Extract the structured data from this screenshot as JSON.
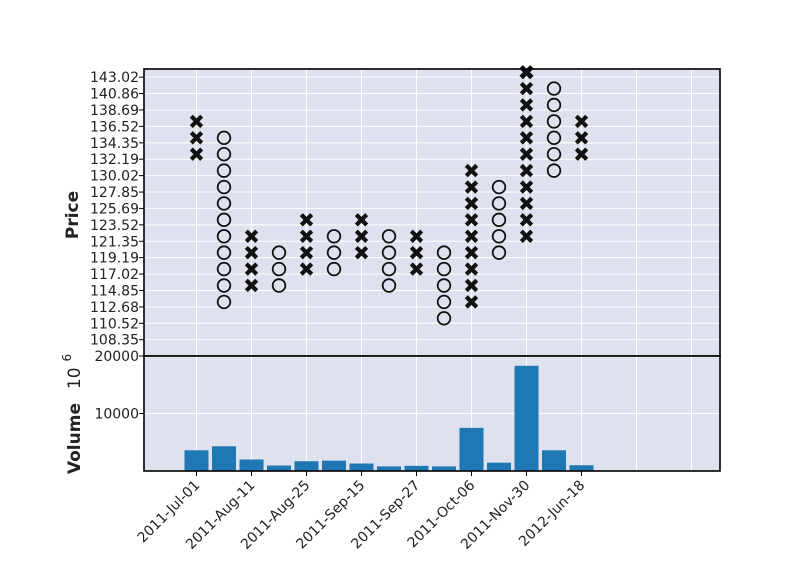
{
  "colors": {
    "panel_background": "#dde2ee",
    "grid": "#ffffff",
    "marker": "#111111",
    "volume_bar": "#1f77b4"
  },
  "chart_data": [
    {
      "type": "point-and-figure",
      "ylabel": "Price",
      "xlabel": "",
      "ylim": [
        106.2,
        144.1
      ],
      "grid": true,
      "y_ticks": [
        "108.35",
        "110.52",
        "112.68",
        "114.85",
        "117.02",
        "119.19",
        "121.35",
        "123.52",
        "125.69",
        "127.85",
        "130.02",
        "132.19",
        "134.35",
        "136.52",
        "138.69",
        "140.86",
        "143.02"
      ],
      "x_tick_labels": [
        "2011-Jul-01",
        "2011-Aug-11",
        "2011-Aug-25",
        "2011-Sep-15",
        "2011-Sep-27",
        "2011-Oct-06",
        "2011-Nov-30",
        "2012-Jun-18"
      ],
      "box_size": 2.1667,
      "columns": [
        {
          "type": "X",
          "low": 132.19,
          "high": 136.52
        },
        {
          "type": "O",
          "low": 112.68,
          "high": 134.35
        },
        {
          "type": "X",
          "low": 114.85,
          "high": 121.35
        },
        {
          "type": "O",
          "low": 114.85,
          "high": 119.19
        },
        {
          "type": "X",
          "low": 117.02,
          "high": 123.52
        },
        {
          "type": "O",
          "low": 117.02,
          "high": 121.35
        },
        {
          "type": "X",
          "low": 119.19,
          "high": 123.52
        },
        {
          "type": "O",
          "low": 114.85,
          "high": 121.35
        },
        {
          "type": "X",
          "low": 117.02,
          "high": 121.35
        },
        {
          "type": "O",
          "low": 110.52,
          "high": 119.19
        },
        {
          "type": "X",
          "low": 112.68,
          "high": 130.02
        },
        {
          "type": "O",
          "low": 119.19,
          "high": 127.85
        },
        {
          "type": "X",
          "low": 121.35,
          "high": 143.02
        },
        {
          "type": "O",
          "low": 130.02,
          "high": 140.86
        },
        {
          "type": "X",
          "low": 132.19,
          "high": 136.52
        }
      ]
    },
    {
      "type": "bar",
      "ylabel": "Volume",
      "ylabel_multiplier": "10",
      "ylabel_exponent": "6",
      "ylim": [
        0,
        20000
      ],
      "y_ticks": [
        "10000",
        "20000"
      ],
      "grid": true,
      "values": [
        3600,
        4300,
        2000,
        950,
        1700,
        1800,
        1300,
        800,
        900,
        800,
        7500,
        1450,
        18300,
        3600,
        1000
      ]
    }
  ]
}
